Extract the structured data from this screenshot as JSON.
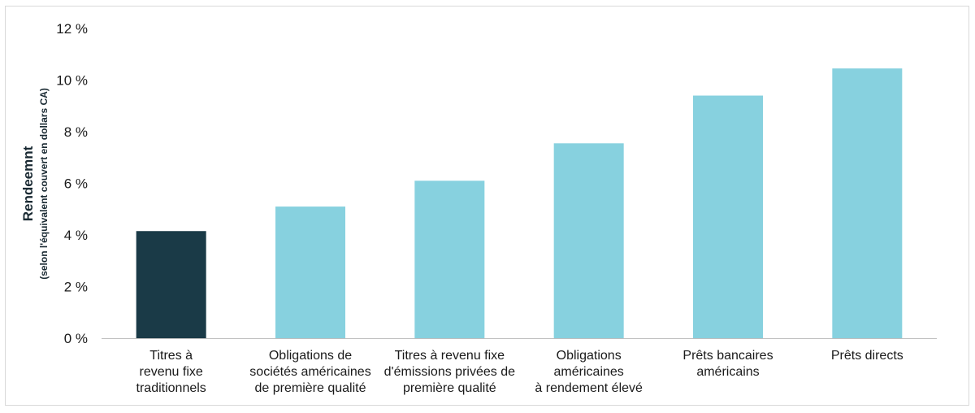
{
  "chart_data": {
    "type": "bar",
    "categories": [
      [
        "Titres à",
        "revenu fixe",
        "traditionnels"
      ],
      [
        "Obligations de",
        "sociétés américaines",
        "de première qualité"
      ],
      [
        "Titres à revenu fixe",
        "d'émissions privées de",
        "première qualité"
      ],
      [
        "Obligations",
        "américaines",
        "à rendement élevé"
      ],
      [
        "Prêts bancaires",
        "américains"
      ],
      [
        "Prêts directs"
      ]
    ],
    "values": [
      4.15,
      5.1,
      6.1,
      7.55,
      9.4,
      10.45
    ],
    "ylim": [
      0,
      12
    ],
    "yticks": [
      0,
      2,
      4,
      6,
      8,
      10,
      12
    ],
    "ytick_labels": [
      "0 %",
      "2 %",
      "4 %",
      "6 %",
      "8 %",
      "10 %",
      "12 %"
    ],
    "ylabel": "Rendeemnt",
    "ylabel_sub": "(selon l'équivalent couvert en dollars CA)",
    "xlabel": "",
    "title": "",
    "grid": false,
    "bar_colors": [
      "#1a3a47",
      "#87d1df",
      "#87d1df",
      "#87d1df",
      "#87d1df",
      "#87d1df"
    ],
    "axis_color": "#bfbfbf"
  }
}
